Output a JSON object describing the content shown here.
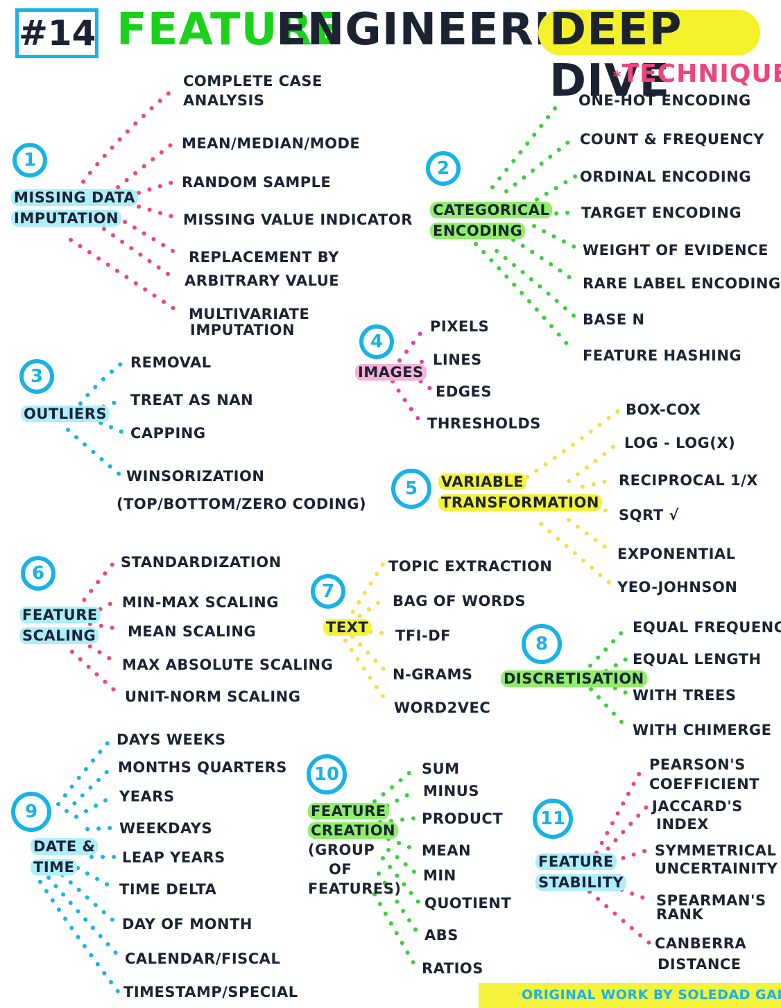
{
  "title": {
    "number": "#14",
    "word1": "Feature",
    "word2": "Engineering",
    "word3": "Deep Dive",
    "subtitle": "Techniques",
    "star": "*"
  },
  "colors": {
    "blue": "#17b3e6",
    "pink": "#f0457a",
    "green": "#3ccf3c",
    "yellow": "#f5d83c",
    "navy": "#1b2333"
  },
  "sections": [
    {
      "number": "1",
      "label_lines": [
        "Missing Data",
        "Imputation"
      ],
      "highlight": "blue",
      "dot_color": "pink",
      "items": [
        "Complete case",
        "analysis",
        "Mean/Median/Mode",
        "Random sample",
        "Missing value indicator",
        "Replacement by",
        "arbitrary value",
        "Multivariate",
        "imputation"
      ]
    },
    {
      "number": "2",
      "label_lines": [
        "Categorical",
        "Encoding"
      ],
      "highlight": "green",
      "dot_color": "green",
      "items": [
        "One-hot encoding",
        "Count & frequency",
        "Ordinal encoding",
        "Target encoding",
        "Weight of evidence",
        "Rare label encoding",
        "Base N",
        "Feature hashing"
      ]
    },
    {
      "number": "3",
      "label_lines": [
        "Outliers"
      ],
      "highlight": "blue",
      "dot_color": "blue",
      "items": [
        "Removal",
        "Treat as NaN",
        "Capping",
        "Winsorization",
        "(top/bottom/zero coding)"
      ]
    },
    {
      "number": "4",
      "label_lines": [
        "Images"
      ],
      "highlight": "pink",
      "dot_color": "magenta",
      "items": [
        "Pixels",
        "Lines",
        "Edges",
        "Thresholds"
      ]
    },
    {
      "number": "5",
      "label_lines": [
        "Variable",
        "Transformation"
      ],
      "highlight": "yellow",
      "dot_color": "yellow",
      "items": [
        "Box-Cox",
        "Log - log(x)",
        "Reciprocal 1/x",
        "Sqrt √",
        "Exponential",
        "Yeo-Johnson"
      ]
    },
    {
      "number": "6",
      "label_lines": [
        "Feature",
        "Scaling"
      ],
      "highlight": "blue",
      "dot_color": "pink",
      "items": [
        "Standardization",
        "Min-Max scaling",
        "Mean scaling",
        "Max absolute scaling",
        "Unit-norm scaling"
      ]
    },
    {
      "number": "7",
      "label_lines": [
        "Text"
      ],
      "highlight": "yellow",
      "dot_color": "yellow",
      "items": [
        "Topic extraction",
        "Bag of words",
        "TFI-DF",
        "N-grams",
        "Word2Vec"
      ]
    },
    {
      "number": "8",
      "label_lines": [
        "Discretisation"
      ],
      "highlight": "green",
      "dot_color": "green",
      "items": [
        "Equal frequency",
        "Equal length",
        "With trees",
        "With ChiMerge"
      ]
    },
    {
      "number": "9",
      "label_lines": [
        "Date &",
        "Time"
      ],
      "highlight": "blue",
      "dot_color": "blue",
      "items": [
        "Days weeks",
        "Months quarters",
        "Years",
        "Weekdays",
        "Leap years",
        "Time delta",
        "Day of month",
        "Calendar/fiscal",
        "Timestamp/special"
      ]
    },
    {
      "number": "10",
      "label_lines": [
        "Feature",
        "Creation",
        "(group",
        "of",
        "features)"
      ],
      "highlight": "green",
      "dot_color": "green",
      "items": [
        "Sum",
        "Minus",
        "Product",
        "Mean",
        "Min",
        "Quotient",
        "Abs",
        "Ratios"
      ]
    },
    {
      "number": "11",
      "label_lines": [
        "Feature",
        "Stability"
      ],
      "highlight": "blue",
      "dot_color": "pink",
      "items": [
        "Pearson's",
        "coefficient",
        "Jaccard's",
        "index",
        "Symmetrical",
        "uncertainity",
        "Spearman's",
        "rank",
        "Canberra",
        "distance"
      ]
    }
  ],
  "footer": "Original work by Soledad Galli"
}
